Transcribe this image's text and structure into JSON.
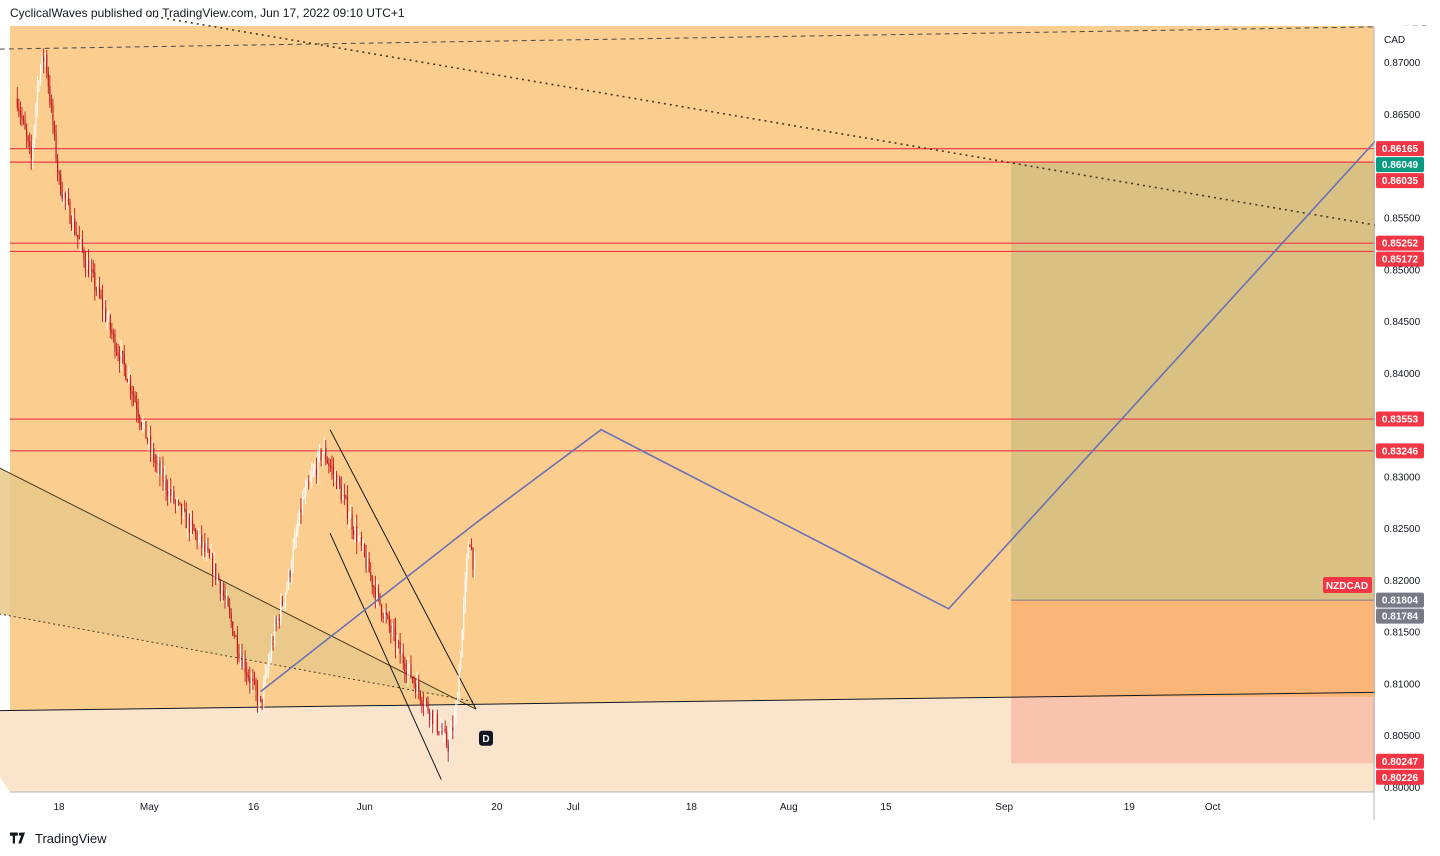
{
  "header": {
    "publisher_line": "CyclicalWaves published on TradingView.com, Jun 17, 2022 09:10 UTC+1"
  },
  "footer": {
    "brand": "TradingView"
  },
  "colors": {
    "chart_bg": "#fbcd8f",
    "lower_zone": "#fbe4cc",
    "target_box": "#d9c184",
    "stop_box": "#fbb577",
    "stop_box_lower": "#f9c3ae",
    "wedge_fill": "#e7c88a",
    "hline_red": "#f23645",
    "projection_line": "#6b71b4",
    "candle_up": "#ffffff",
    "candle_down": "#c2181d",
    "axis_text": "#131722",
    "badge_red": "#f23645",
    "badge_green": "#089981",
    "badge_gray": "#787b86"
  },
  "chart_data": {
    "type": "candlestick",
    "symbol": "NZDCAD",
    "currency_label": "CAD",
    "y_range": [
      0.7995,
      0.8735
    ],
    "y_ticks": [
      "0.87000",
      "0.86500",
      "0.85500",
      "0.85000",
      "0.84500",
      "0.84000",
      "0.83000",
      "0.82500",
      "0.82000",
      "0.81500",
      "0.81000",
      "0.80500",
      "0.80000"
    ],
    "x_tick_labels": [
      "18",
      "May",
      "16",
      "Jun",
      "20",
      "Jul",
      "18",
      "Aug",
      "15",
      "Sep",
      "19",
      "Oct"
    ],
    "candle_window": [
      "2022-04-12",
      "2022-06-17"
    ],
    "price_path": [
      [
        "2022-04-12",
        0.8665
      ],
      [
        "2022-04-14",
        0.8605
      ],
      [
        "2022-04-15",
        0.8685
      ],
      [
        "2022-04-16",
        0.8708
      ],
      [
        "2022-04-18",
        0.8585
      ],
      [
        "2022-04-20",
        0.8545
      ],
      [
        "2022-04-22",
        0.8505
      ],
      [
        "2022-04-24",
        0.847
      ],
      [
        "2022-04-26",
        0.843
      ],
      [
        "2022-04-28",
        0.8395
      ],
      [
        "2022-04-30",
        0.835
      ],
      [
        "2022-05-02",
        0.831
      ],
      [
        "2022-05-05",
        0.827
      ],
      [
        "2022-05-08",
        0.824
      ],
      [
        "2022-05-11",
        0.82
      ],
      [
        "2022-05-14",
        0.813
      ],
      [
        "2022-05-17",
        0.8078
      ],
      [
        "2022-05-19",
        0.815
      ],
      [
        "2022-05-21",
        0.82
      ],
      [
        "2022-05-23",
        0.8275
      ],
      [
        "2022-05-26",
        0.8325
      ],
      [
        "2022-05-28",
        0.8295
      ],
      [
        "2022-05-31",
        0.824
      ],
      [
        "2022-06-03",
        0.818
      ],
      [
        "2022-06-06",
        0.813
      ],
      [
        "2022-06-09",
        0.809
      ],
      [
        "2022-06-13",
        0.804
      ],
      [
        "2022-06-14",
        0.8065
      ],
      [
        "2022-06-15",
        0.815
      ],
      [
        "2022-06-16",
        0.8245
      ],
      [
        "2022-06-17",
        0.82
      ]
    ],
    "horizontal_levels": [
      0.86165,
      0.86035,
      0.85252,
      0.85172,
      0.83553,
      0.83246
    ],
    "price_badges": [
      {
        "value": "0.86165",
        "color": "red"
      },
      {
        "value": "0.86049",
        "color": "green"
      },
      {
        "value": "0.86035",
        "color": "red"
      },
      {
        "value": "0.85252",
        "color": "red"
      },
      {
        "value": "0.85172",
        "color": "red"
      },
      {
        "value": "0.83553",
        "color": "red"
      },
      {
        "value": "0.83246",
        "color": "red"
      },
      {
        "value": "0.81804",
        "color": "gray"
      },
      {
        "value": "0.81784",
        "color": "gray"
      },
      {
        "value": "0.80247",
        "color": "red"
      },
      {
        "value": "0.80226",
        "color": "red"
      }
    ],
    "symbol_badge_price": 0.8195,
    "projection_path": [
      [
        "2022-05-17",
        0.8092
      ],
      [
        "2022-06-17",
        0.8255
      ],
      [
        "2022-07-05",
        0.8345
      ],
      [
        "2022-08-24",
        0.8172
      ],
      [
        "2022-10-30",
        0.8665
      ]
    ],
    "long_position": {
      "start": "2022-09-02",
      "end": "2022-10-27",
      "target": 0.86035,
      "entry": 0.81804,
      "stop": 0.80226
    },
    "falling_wedge": [
      [
        [
          "2022-05-27",
          0.8345
        ],
        [
          "2022-06-17",
          0.8075
        ]
      ],
      [
        [
          "2022-05-27",
          0.8245
        ],
        [
          "2022-06-12",
          0.8007
        ]
      ]
    ],
    "support_trendline": [
      [
        "2022-04-03",
        0.8073
      ],
      [
        "2022-11-01",
        0.8092
      ]
    ],
    "descending_trendline": [
      [
        "2022-04-03",
        0.833
      ],
      [
        "2022-06-17",
        0.8075
      ]
    ],
    "dotted_trendline": [
      [
        "2022-04-03",
        0.8175
      ],
      [
        "2022-06-17",
        0.8082
      ]
    ],
    "dashed_resistance": [
      [
        "2022-04-03",
        0.8712
      ],
      [
        "2022-11-01",
        0.8735
      ]
    ],
    "dotted_resistance": [
      [
        "2022-05-01",
        0.8745
      ],
      [
        "2022-11-01",
        0.8534
      ]
    ],
    "lower_zone_top": 0.8075,
    "d_label": "D",
    "d_label_point": [
      "2022-06-17",
      0.8058
    ]
  }
}
